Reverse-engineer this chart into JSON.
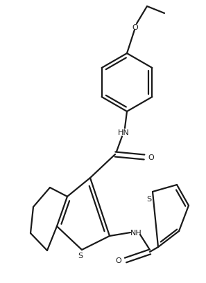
{
  "bg_color": "#ffffff",
  "line_color": "#1a1a1a",
  "line_width": 1.6,
  "fig_width": 2.97,
  "fig_height": 4.1,
  "dpi": 100,
  "xlim": [
    0,
    297
  ],
  "ylim": [
    0,
    410
  ]
}
